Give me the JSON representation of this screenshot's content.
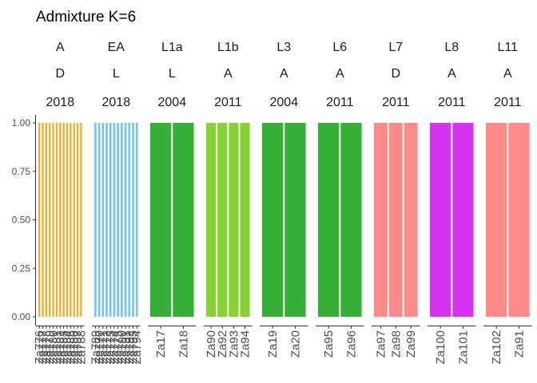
{
  "chart_data": {
    "type": "bar",
    "stacked": true,
    "title": "Admixture K=6",
    "xlabel": "",
    "ylabel": "",
    "ylim": [
      0,
      1
    ],
    "yticks": [
      "0.00",
      "0.25",
      "0.50",
      "0.75",
      "1.00"
    ],
    "grid": false,
    "legend": "none",
    "panels": [
      {
        "strip": [
          "A",
          "D",
          "2018"
        ],
        "color": "#EBB033",
        "samples": [
          "Za776",
          "Za777",
          "Za778",
          "Za779",
          "Za780",
          "Za781",
          "Za782",
          "Za783",
          "Za784",
          "Za785",
          "Za786",
          "Za787",
          "Za788"
        ],
        "values": [
          1,
          1,
          1,
          1,
          1,
          1,
          1,
          1,
          1,
          1,
          1,
          1,
          1
        ]
      },
      {
        "strip": [
          "EA",
          "L",
          "2018"
        ],
        "color": "#7CC2EE",
        "samples": [
          "Za789",
          "Za770",
          "Za771",
          "Za772",
          "Za773",
          "Za774",
          "Za775",
          "Za790",
          "Za791",
          "Za792",
          "Za793",
          "Za794"
        ],
        "values": [
          1,
          1,
          1,
          1,
          1,
          1,
          1,
          1,
          1,
          1,
          1,
          1
        ]
      },
      {
        "strip": [
          "L1a",
          "L",
          "2004"
        ],
        "color": "#35AF35",
        "samples": [
          "Za17",
          "Za18"
        ],
        "values": [
          1,
          1
        ]
      },
      {
        "strip": [
          "L1b",
          "A",
          "2011"
        ],
        "color": "#86D232",
        "samples": [
          "Za90",
          "Za92",
          "Za93",
          "Za94"
        ],
        "values": [
          1,
          1,
          1,
          1
        ]
      },
      {
        "strip": [
          "L3",
          "A",
          "2004"
        ],
        "color": "#35AF35",
        "samples": [
          "Za19",
          "Za20"
        ],
        "values": [
          1,
          1
        ]
      },
      {
        "strip": [
          "L6",
          "A",
          "2011"
        ],
        "color": "#35AF35",
        "samples": [
          "Za95",
          "Za96"
        ],
        "values": [
          1,
          1
        ]
      },
      {
        "strip": [
          "L7",
          "D",
          "2011"
        ],
        "color": "#FF8A8A",
        "samples": [
          "Za97",
          "Za98",
          "Za99"
        ],
        "values": [
          1,
          1,
          1
        ]
      },
      {
        "strip": [
          "L8",
          "A",
          "2011"
        ],
        "color": "#D633F0",
        "samples": [
          "Za100",
          "Za101"
        ],
        "values": [
          1,
          1
        ]
      },
      {
        "strip": [
          "L11",
          "A",
          "2011"
        ],
        "color": "#FF8A8A",
        "samples": [
          "Za102",
          "Za91"
        ],
        "values": [
          1,
          1
        ]
      }
    ]
  }
}
